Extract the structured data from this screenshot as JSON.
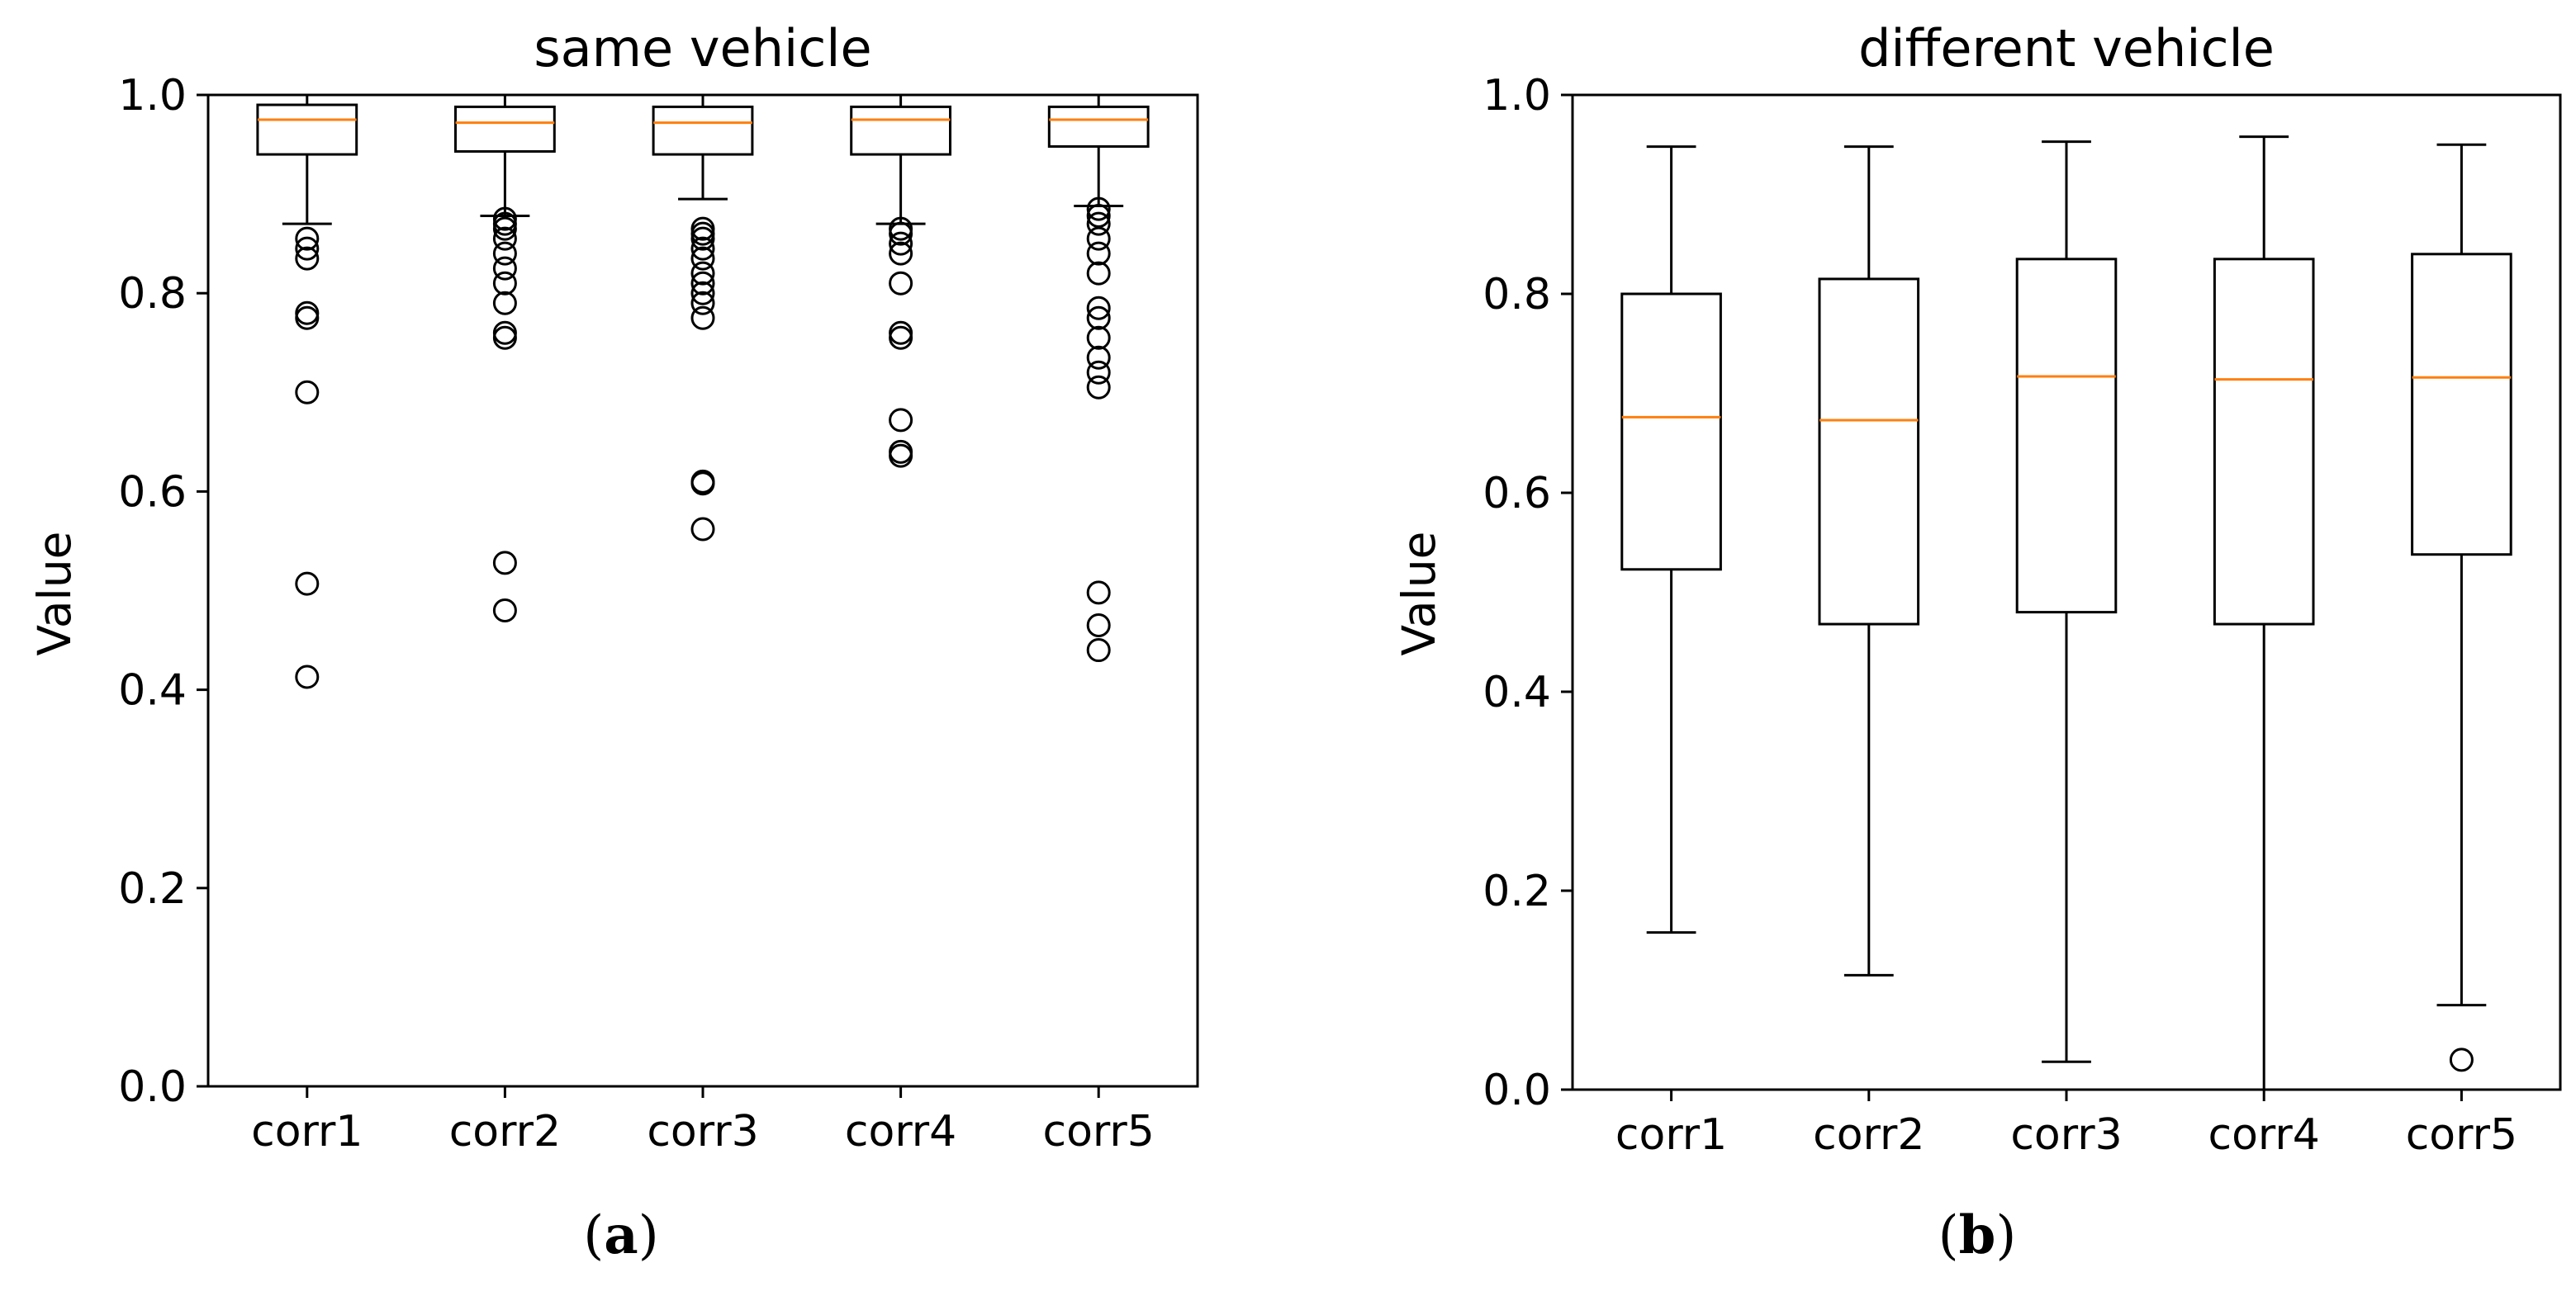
{
  "chart_data": [
    {
      "type": "box",
      "title": "same vehicle",
      "xlabel": "",
      "ylabel": "Value",
      "caption": "a",
      "ylim": [
        0.0,
        1.0
      ],
      "yticks": [
        "0.0",
        "0.2",
        "0.4",
        "0.6",
        "0.8",
        "1.0"
      ],
      "colors": {
        "median": "#ff7f0e",
        "box": "#000000"
      },
      "categories": [
        "corr1",
        "corr2",
        "corr3",
        "corr4",
        "corr5"
      ],
      "boxes": [
        {
          "name": "corr1",
          "whislo": 0.87,
          "q1": 0.94,
          "med": 0.975,
          "q3": 0.99,
          "whishi": 1.0,
          "fliers": [
            0.855,
            0.845,
            0.835,
            0.78,
            0.775,
            0.7,
            0.507,
            0.413
          ]
        },
        {
          "name": "corr2",
          "whislo": 0.878,
          "q1": 0.943,
          "med": 0.972,
          "q3": 0.988,
          "whishi": 1.0,
          "fliers": [
            0.875,
            0.87,
            0.865,
            0.855,
            0.84,
            0.825,
            0.81,
            0.79,
            0.76,
            0.755,
            0.528,
            0.48
          ]
        },
        {
          "name": "corr3",
          "whislo": 0.895,
          "q1": 0.94,
          "med": 0.972,
          "q3": 0.988,
          "whishi": 1.0,
          "fliers": [
            0.865,
            0.86,
            0.855,
            0.845,
            0.835,
            0.82,
            0.81,
            0.8,
            0.79,
            0.775,
            0.61,
            0.608,
            0.562
          ]
        },
        {
          "name": "corr4",
          "whislo": 0.87,
          "q1": 0.94,
          "med": 0.975,
          "q3": 0.988,
          "whishi": 1.0,
          "fliers": [
            0.865,
            0.86,
            0.85,
            0.84,
            0.81,
            0.76,
            0.755,
            0.672,
            0.64,
            0.636
          ]
        },
        {
          "name": "corr5",
          "whislo": 0.888,
          "q1": 0.948,
          "med": 0.975,
          "q3": 0.988,
          "whishi": 1.0,
          "fliers": [
            0.885,
            0.878,
            0.87,
            0.855,
            0.84,
            0.82,
            0.785,
            0.775,
            0.755,
            0.735,
            0.72,
            0.705,
            0.498,
            0.465,
            0.44
          ]
        }
      ]
    },
    {
      "type": "box",
      "title": "different vehicle",
      "xlabel": "",
      "ylabel": "Value",
      "caption": "b",
      "ylim": [
        0.0,
        1.0
      ],
      "yticks": [
        "0.0",
        "0.2",
        "0.4",
        "0.6",
        "0.8",
        "1.0"
      ],
      "colors": {
        "median": "#ff7f0e",
        "box": "#000000"
      },
      "categories": [
        "corr1",
        "corr2",
        "corr3",
        "corr4",
        "corr5"
      ],
      "boxes": [
        {
          "name": "corr1",
          "whislo": 0.158,
          "q1": 0.523,
          "med": 0.676,
          "q3": 0.8,
          "whishi": 0.948,
          "fliers": []
        },
        {
          "name": "corr2",
          "whislo": 0.115,
          "q1": 0.468,
          "med": 0.673,
          "q3": 0.815,
          "whishi": 0.948,
          "fliers": []
        },
        {
          "name": "corr3",
          "whislo": 0.028,
          "q1": 0.48,
          "med": 0.717,
          "q3": 0.835,
          "whishi": 0.953,
          "fliers": []
        },
        {
          "name": "corr4",
          "whislo": 0.0,
          "q1": 0.468,
          "med": 0.714,
          "q3": 0.835,
          "whishi": 0.958,
          "fliers": []
        },
        {
          "name": "corr5",
          "whislo": 0.085,
          "q1": 0.538,
          "med": 0.716,
          "q3": 0.84,
          "whishi": 0.95,
          "fliers": [
            0.03
          ]
        }
      ]
    }
  ]
}
